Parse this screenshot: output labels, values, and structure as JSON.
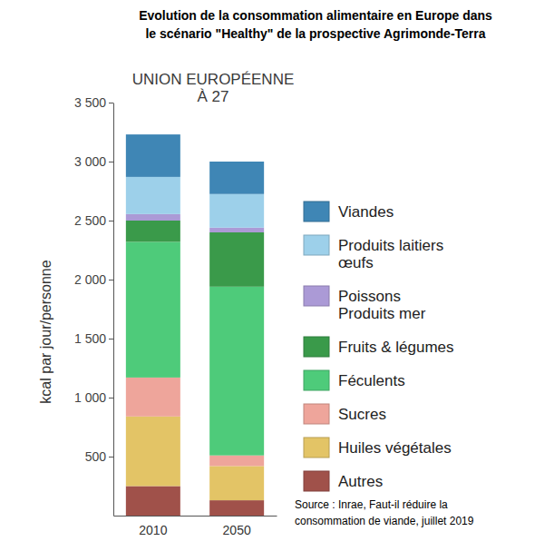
{
  "chart_data": {
    "type": "bar",
    "title": "Evolution de la consommation alimentaire en Europe dans\nle scénario \"Healthy\" de la prospective Agrimonde-Terra",
    "subtitle": "UNION EUROPÉENNE\nÀ 27",
    "y_label": "kcal par jour/personne",
    "annotation": "Source : Inrae, Faut-il réduire la\nconsommation de viande, juillet 2019",
    "categories": [
      "2010",
      "2050"
    ],
    "series": [
      {
        "name": "Viandes",
        "color": "#3f86b5",
        "values": [
          360,
          275
        ]
      },
      {
        "name": "Produits laitiers\nœufs",
        "color": "#9dd0ea",
        "values": [
          315,
          285
        ]
      },
      {
        "name": "Poissons\nProduits mer",
        "color": "#ab9ad6",
        "values": [
          55,
          40
        ]
      },
      {
        "name": "Fruits & légumes",
        "color": "#3a9a4a",
        "values": [
          180,
          460
        ]
      },
      {
        "name": "Féculents",
        "color": "#4ecb7a",
        "values": [
          1150,
          1430
        ]
      },
      {
        "name": "Sucres",
        "color": "#eea59b",
        "values": [
          330,
          90
        ]
      },
      {
        "name": "Huiles végétales",
        "color": "#e3c466",
        "values": [
          590,
          290
        ]
      },
      {
        "name": "Autres",
        "color": "#a0514a",
        "values": [
          250,
          130
        ]
      }
    ],
    "ylim": [
      0,
      3500
    ],
    "yticks": [
      500,
      {
        "value": 1000,
        "label": "1 000"
      },
      {
        "value": 1500,
        "label": "1 500"
      },
      {
        "value": 2000,
        "label": "2 000"
      },
      {
        "value": 2500,
        "label": "2 500"
      },
      {
        "value": 3000,
        "label": "3 000"
      },
      {
        "value": 3500,
        "label": "3 500"
      }
    ],
    "stacked": true,
    "grid": false,
    "legend": "right"
  }
}
